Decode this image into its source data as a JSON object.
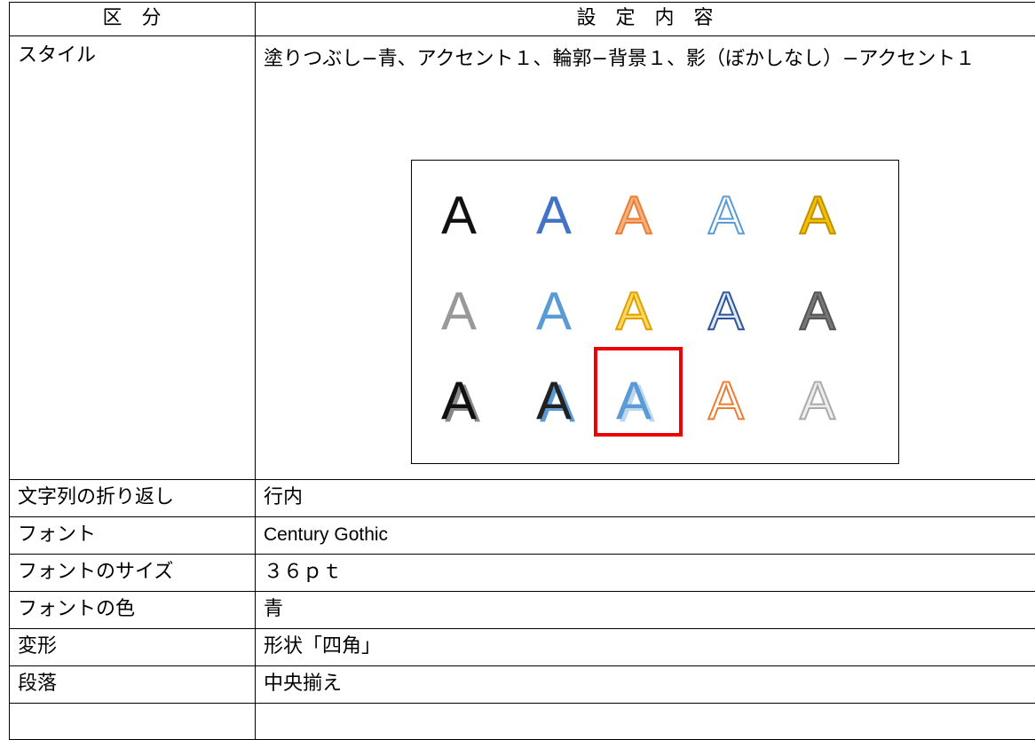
{
  "table": {
    "header": [
      "区　分",
      "設　定　内　容"
    ],
    "rows": [
      [
        "スタイル",
        "塗りつぶし−青、アクセント１、輪郭−背景１、影（ぼかしなし）−アクセント１"
      ],
      [
        "文字列の折り返し",
        "行内"
      ],
      [
        "フォント",
        "Century Gothic"
      ],
      [
        "フォントのサイズ",
        "３６ｐｔ"
      ],
      [
        "フォントの色",
        "青"
      ],
      [
        "変形",
        "形状「四角」"
      ],
      [
        "段落",
        "中央揃え"
      ]
    ]
  },
  "gallery": {
    "letter": "A"
  }
}
